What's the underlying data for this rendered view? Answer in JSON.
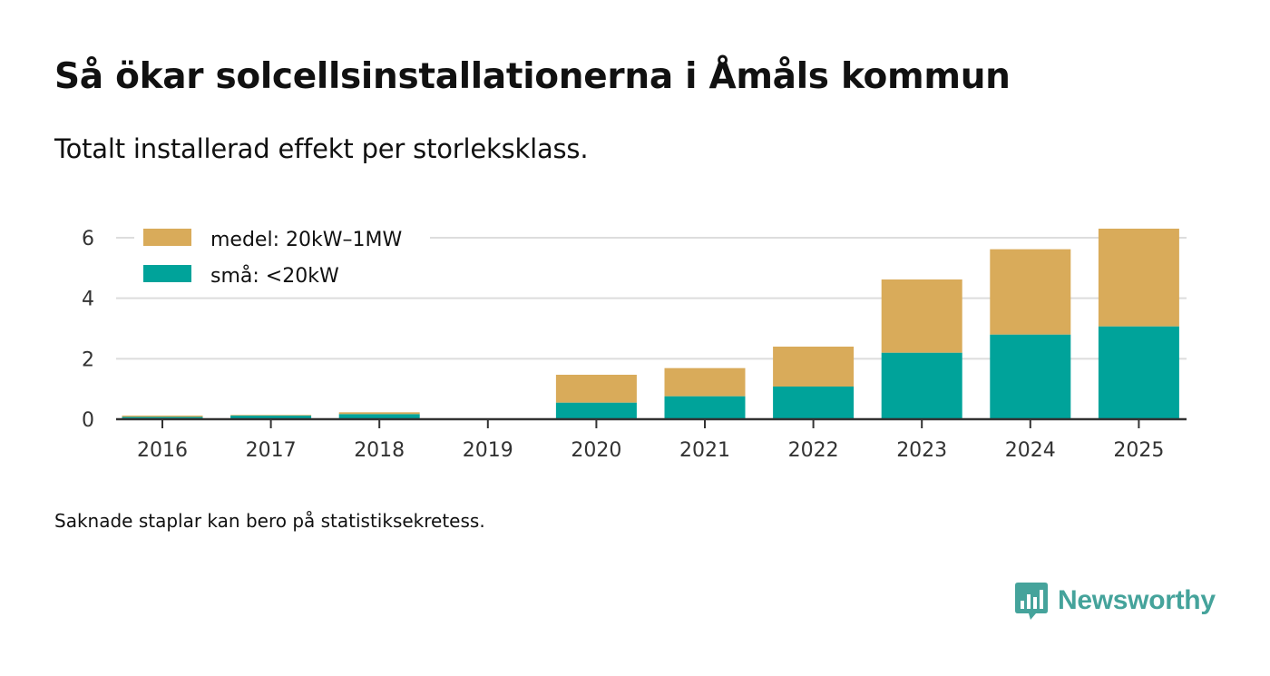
{
  "title": "Så ökar solcellsinstallationerna i Åmåls kommun",
  "subtitle": "Totalt installerad effekt per storleksklass.",
  "note": "Saknade staplar kan bero på statistiksekretess.",
  "brand": {
    "name": "Newsworthy",
    "icon": "newsworthy-logo-icon"
  },
  "colors": {
    "small": "#00a39a",
    "medium": "#d9ab5a",
    "grid": "#dddddd",
    "axis": "#333333"
  },
  "chart_data": {
    "type": "bar",
    "stacked": true,
    "title": "Så ökar solcellsinstallationerna i Åmåls kommun",
    "subtitle": "Totalt installerad effekt per storleksklass.",
    "xlabel": "",
    "ylabel": "",
    "categories": [
      "2016",
      "2017",
      "2018",
      "2019",
      "2020",
      "2021",
      "2022",
      "2023",
      "2024",
      "2025"
    ],
    "series": [
      {
        "name": "små: <20kW",
        "key": "small",
        "values": [
          0.08,
          0.12,
          0.17,
          0,
          0.55,
          0.76,
          1.08,
          2.2,
          2.8,
          3.07
        ]
      },
      {
        "name": "medel: 20kW–1MW",
        "key": "medium",
        "values": [
          0.04,
          0.02,
          0.06,
          0,
          0.92,
          0.93,
          1.32,
          2.42,
          2.82,
          3.23
        ]
      }
    ],
    "legend_order": [
      "medium",
      "small"
    ],
    "yticks": [
      0,
      2,
      4,
      6
    ],
    "ylim": [
      0,
      6.3
    ],
    "grid": true,
    "legend_position": "top-left"
  }
}
